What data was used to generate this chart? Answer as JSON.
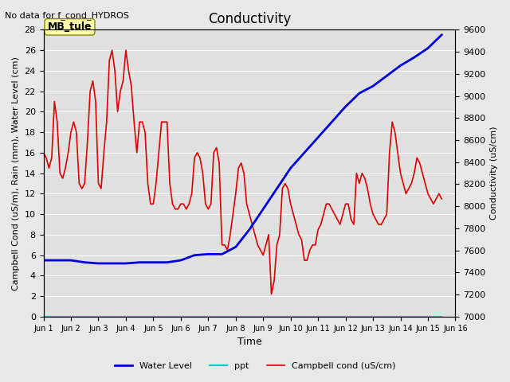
{
  "title": "Conductivity",
  "subtitle": "No data for f_cond_HYDROS",
  "ylabel_left": "Campbell Cond (uS/m), Rain (mm), Water Level (cm)",
  "ylabel_right": "Conductivity (uS/cm)",
  "xlabel": "Time",
  "ylim_left": [
    0,
    28
  ],
  "ylim_right": [
    7000,
    9600
  ],
  "background_color": "#e8e8e8",
  "plot_bg_color": "#e0e0e0",
  "xtick_labels": [
    "Jun 1",
    "Jun 2",
    "Jun 3",
    "Jun 4",
    "Jun 5",
    "Jun 6",
    "Jun 7",
    "Jun 8",
    "Jun 9",
    "Jun 10",
    "Jun 11",
    "Jun 12",
    "Jun 13",
    "Jun 14",
    "Jun 15",
    "Jun 16"
  ],
  "yticks_left": [
    0,
    2,
    4,
    6,
    8,
    10,
    12,
    14,
    16,
    18,
    20,
    22,
    24,
    26,
    28
  ],
  "yticks_right": [
    7000,
    7200,
    7400,
    7600,
    7800,
    8000,
    8200,
    8400,
    8600,
    8800,
    9000,
    9200,
    9400,
    9600
  ],
  "legend_entries": [
    "Water Level",
    "ppt",
    "Campbell cond (uS/cm)"
  ],
  "legend_colors": [
    "#0000cc",
    "#00cccc",
    "#cc0000"
  ],
  "annotation_text": "MB_tule",
  "annotation_box_color": "#ffffaa",
  "annotation_box_edge": "#888800",
  "water_level_color": "#0000dd",
  "campbell_color": "#dd0000",
  "ppt_color": "#00cccc",
  "water_level_x": [
    0,
    0.5,
    1,
    1.5,
    2,
    2.5,
    3,
    3.5,
    4,
    4.5,
    5,
    5.5,
    6,
    6.5,
    7,
    7.5,
    8,
    8.5,
    9,
    9.5,
    10,
    10.5,
    11,
    11.5,
    12,
    12.5,
    13,
    13.5,
    14,
    14.5
  ],
  "water_level_y": [
    5.5,
    5.5,
    5.5,
    5.3,
    5.2,
    5.2,
    5.2,
    5.3,
    5.3,
    5.3,
    5.5,
    6.0,
    6.1,
    6.1,
    6.8,
    8.5,
    10.5,
    12.5,
    14.5,
    16.0,
    17.5,
    19.0,
    20.5,
    21.8,
    22.5,
    23.5,
    24.5,
    25.3,
    26.2,
    27.5
  ],
  "campbell_x": [
    0,
    0.1,
    0.2,
    0.3,
    0.4,
    0.5,
    0.6,
    0.7,
    0.8,
    0.9,
    1.0,
    1.1,
    1.2,
    1.3,
    1.4,
    1.5,
    1.6,
    1.7,
    1.8,
    1.9,
    2.0,
    2.1,
    2.2,
    2.3,
    2.4,
    2.5,
    2.6,
    2.7,
    2.8,
    2.9,
    3.0,
    3.1,
    3.2,
    3.3,
    3.4,
    3.5,
    3.6,
    3.7,
    3.8,
    3.9,
    4.0,
    4.1,
    4.2,
    4.3,
    4.4,
    4.5,
    4.6,
    4.7,
    4.8,
    4.9,
    5.0,
    5.1,
    5.2,
    5.3,
    5.4,
    5.5,
    5.6,
    5.7,
    5.8,
    5.9,
    6.0,
    6.1,
    6.2,
    6.3,
    6.4,
    6.5,
    6.6,
    6.7,
    6.8,
    6.9,
    7.0,
    7.1,
    7.2,
    7.3,
    7.4,
    7.5,
    7.6,
    7.7,
    7.8,
    7.9,
    8.0,
    8.1,
    8.2,
    8.3,
    8.4,
    8.5,
    8.6,
    8.7,
    8.8,
    8.9,
    9.0,
    9.1,
    9.2,
    9.3,
    9.4,
    9.5,
    9.6,
    9.7,
    9.8,
    9.9,
    10.0,
    10.1,
    10.2,
    10.3,
    10.4,
    10.5,
    10.6,
    10.7,
    10.8,
    10.9,
    11.0,
    11.1,
    11.2,
    11.3,
    11.4,
    11.5,
    11.6,
    11.7,
    11.8,
    11.9,
    12.0,
    12.1,
    12.2,
    12.3,
    12.4,
    12.5,
    12.6,
    12.7,
    12.8,
    12.9,
    13.0,
    13.1,
    13.2,
    13.3,
    13.4,
    13.5,
    13.6,
    13.7,
    13.8,
    13.9,
    14.0,
    14.1,
    14.2,
    14.3,
    14.4,
    14.5
  ],
  "campbell_y": [
    16,
    15.5,
    14.5,
    15.5,
    21,
    19,
    14,
    13.5,
    14.5,
    16,
    18,
    19,
    18,
    13,
    12.5,
    13,
    17,
    22,
    23,
    21,
    13,
    12.5,
    16,
    19,
    25,
    26,
    24,
    20,
    22,
    23,
    26,
    24,
    22.5,
    19,
    16,
    19,
    19,
    18,
    13,
    11,
    11,
    13,
    16,
    19,
    19,
    19,
    13,
    11,
    10.5,
    10.5,
    11,
    11,
    10.5,
    11,
    12,
    15.5,
    16,
    15.5,
    14,
    11,
    10.5,
    11,
    16,
    16.5,
    15,
    7,
    7,
    6.5,
    8,
    10,
    12,
    14.5,
    15,
    14,
    11,
    10,
    9,
    8,
    7,
    6.5,
    6,
    7,
    8,
    2.2,
    3.5,
    7,
    8,
    12.5,
    13,
    12.5,
    11,
    10,
    9,
    8,
    7.5,
    5.5,
    5.5,
    6.5,
    7,
    7,
    8.5,
    9,
    10,
    11,
    11,
    10.5,
    10,
    9.5,
    9,
    10,
    11,
    11,
    9.5,
    9,
    14,
    13,
    14,
    13.5,
    12.5,
    11,
    10,
    9.5,
    9,
    9,
    9.5,
    10,
    16,
    19,
    18,
    16,
    14,
    13,
    12,
    12.5,
    13,
    14,
    15.5,
    15,
    14,
    13,
    12,
    11.5,
    11,
    11.5,
    12,
    11.5
  ]
}
